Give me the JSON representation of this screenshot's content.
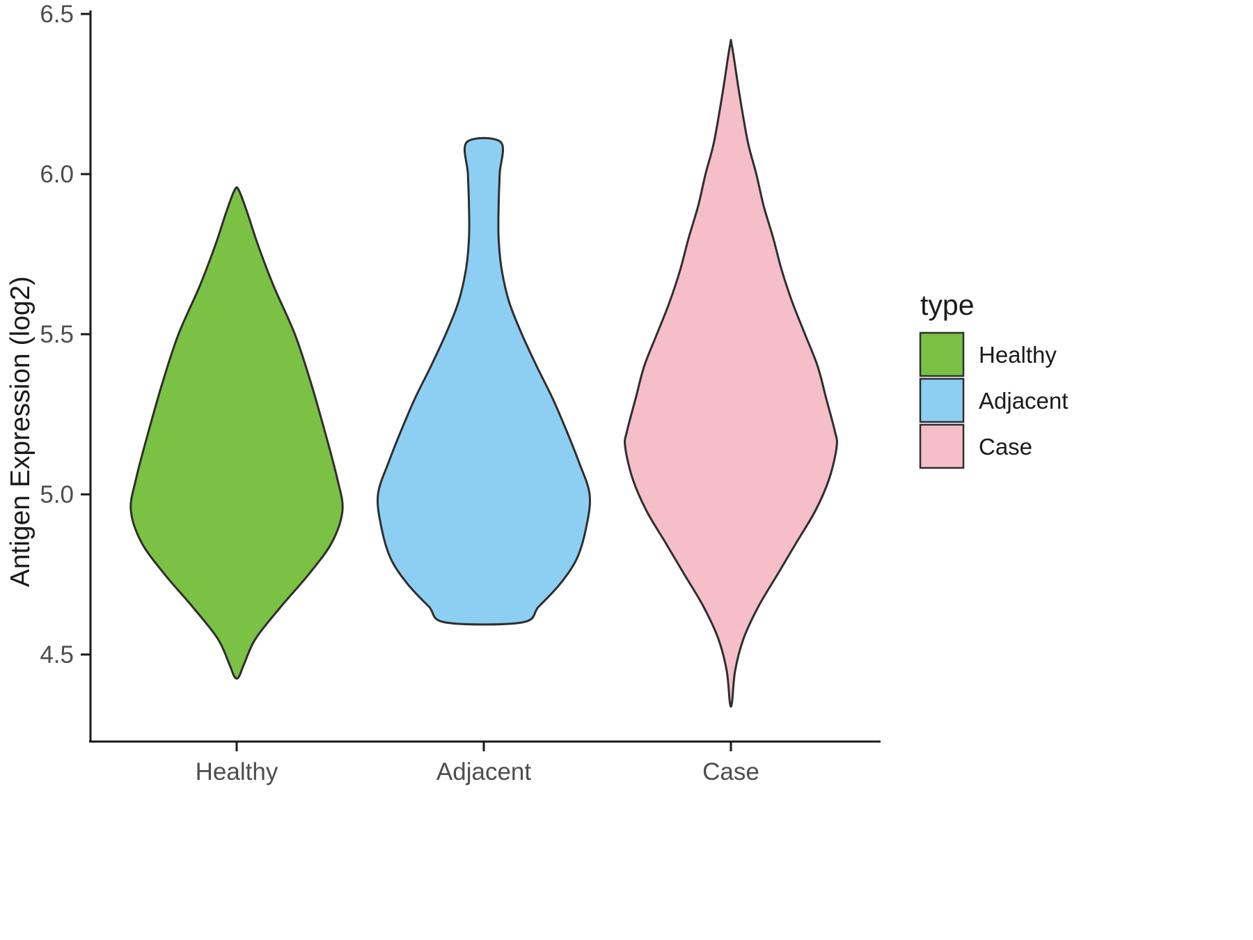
{
  "chart_data": {
    "type": "violin",
    "title": "",
    "xlabel": "",
    "ylabel": "Antigen Expression (log2)",
    "categories": [
      "Healthy",
      "Adjacent",
      "Case"
    ],
    "y_ticks": [
      4.5,
      5.0,
      5.5,
      6.0,
      6.5
    ],
    "y_tick_labels": [
      "4.5",
      "5.0",
      "5.5",
      "6.0",
      "6.5"
    ],
    "ylim": [
      4.2,
      6.5
    ],
    "grid": "off",
    "stroke_color": "#2e2e2e",
    "axis_line_color": "#1a1a1a",
    "tick_label_color": "#4d4d4d",
    "legend": {
      "title": "type",
      "position": "right",
      "entries": [
        {
          "label": "Healthy",
          "color": "#7BC143"
        },
        {
          "label": "Adjacent",
          "color": "#8DCFF2"
        },
        {
          "label": "Case",
          "color": "#F5BEC8"
        }
      ]
    },
    "series": [
      {
        "name": "Healthy",
        "color": "#7BC143",
        "value_range": [
          4.43,
          5.95
        ],
        "profile": [
          [
            5.95,
            0.02
          ],
          [
            5.88,
            0.1
          ],
          [
            5.78,
            0.2
          ],
          [
            5.65,
            0.35
          ],
          [
            5.5,
            0.55
          ],
          [
            5.35,
            0.7
          ],
          [
            5.2,
            0.83
          ],
          [
            5.05,
            0.95
          ],
          [
            4.95,
            1.0
          ],
          [
            4.85,
            0.9
          ],
          [
            4.75,
            0.68
          ],
          [
            4.65,
            0.42
          ],
          [
            4.55,
            0.18
          ],
          [
            4.47,
            0.07
          ],
          [
            4.43,
            0.02
          ]
        ]
      },
      {
        "name": "Adjacent",
        "color": "#8DCFF2",
        "value_range": [
          4.6,
          6.1
        ],
        "profile": [
          [
            6.1,
            0.16
          ],
          [
            6.0,
            0.15
          ],
          [
            5.9,
            0.14
          ],
          [
            5.8,
            0.14
          ],
          [
            5.7,
            0.17
          ],
          [
            5.6,
            0.24
          ],
          [
            5.5,
            0.36
          ],
          [
            5.4,
            0.5
          ],
          [
            5.3,
            0.65
          ],
          [
            5.2,
            0.78
          ],
          [
            5.1,
            0.9
          ],
          [
            5.0,
            1.0
          ],
          [
            4.9,
            0.97
          ],
          [
            4.8,
            0.88
          ],
          [
            4.72,
            0.72
          ],
          [
            4.65,
            0.52
          ],
          [
            4.6,
            0.36
          ]
        ]
      },
      {
        "name": "Case",
        "color": "#F5BEC8",
        "value_range": [
          4.35,
          6.4
        ],
        "profile": [
          [
            6.4,
            0.01
          ],
          [
            6.25,
            0.08
          ],
          [
            6.1,
            0.16
          ],
          [
            6.0,
            0.24
          ],
          [
            5.9,
            0.31
          ],
          [
            5.8,
            0.4
          ],
          [
            5.7,
            0.48
          ],
          [
            5.6,
            0.58
          ],
          [
            5.5,
            0.7
          ],
          [
            5.4,
            0.82
          ],
          [
            5.3,
            0.9
          ],
          [
            5.2,
            0.98
          ],
          [
            5.15,
            1.0
          ],
          [
            5.05,
            0.93
          ],
          [
            4.95,
            0.8
          ],
          [
            4.85,
            0.62
          ],
          [
            4.75,
            0.44
          ],
          [
            4.65,
            0.26
          ],
          [
            4.55,
            0.12
          ],
          [
            4.45,
            0.04
          ],
          [
            4.35,
            0.01
          ]
        ]
      }
    ]
  }
}
